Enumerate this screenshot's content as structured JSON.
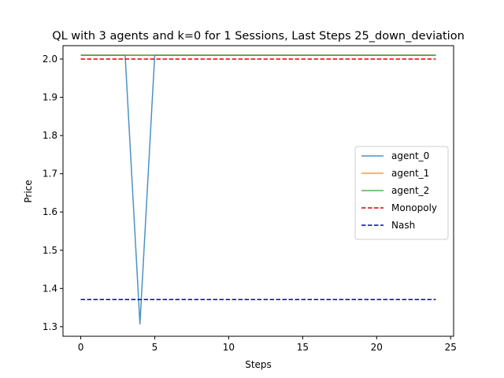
{
  "chart_data": {
    "type": "line",
    "title": "QL with 3 agents and k=0 for 1 Sessions, Last Steps 25_down_deviation",
    "xlabel": "Steps",
    "ylabel": "Price",
    "xlim": [
      -1.2,
      25.2
    ],
    "ylim": [
      1.275,
      2.035
    ],
    "x_ticks": [
      0,
      5,
      10,
      15,
      20,
      25
    ],
    "y_ticks": [
      1.3,
      1.4,
      1.5,
      1.6,
      1.7,
      1.8,
      1.9,
      2.0
    ],
    "grid": false,
    "legend_position": "center-right",
    "series": [
      {
        "name": "agent_0",
        "color": "#1f77b4",
        "dash": "solid",
        "x": [
          0,
          1,
          2,
          3,
          4,
          5,
          6,
          7,
          8,
          9,
          10,
          11,
          12,
          13,
          14,
          15,
          16,
          17,
          18,
          19,
          20,
          21,
          22,
          23,
          24
        ],
        "y": [
          2.01,
          2.01,
          2.01,
          2.01,
          1.307,
          2.01,
          2.01,
          2.01,
          2.01,
          2.01,
          2.01,
          2.01,
          2.01,
          2.01,
          2.01,
          2.01,
          2.01,
          2.01,
          2.01,
          2.01,
          2.01,
          2.01,
          2.01,
          2.01,
          2.01
        ]
      },
      {
        "name": "agent_1",
        "color": "#ff7f0e",
        "dash": "solid",
        "x": [
          0,
          1,
          2,
          3,
          4,
          5,
          6,
          7,
          8,
          9,
          10,
          11,
          12,
          13,
          14,
          15,
          16,
          17,
          18,
          19,
          20,
          21,
          22,
          23,
          24
        ],
        "y": [
          2.01,
          2.01,
          2.01,
          2.01,
          2.01,
          2.01,
          2.01,
          2.01,
          2.01,
          2.01,
          2.01,
          2.01,
          2.01,
          2.01,
          2.01,
          2.01,
          2.01,
          2.01,
          2.01,
          2.01,
          2.01,
          2.01,
          2.01,
          2.01,
          2.01
        ]
      },
      {
        "name": "agent_2",
        "color": "#2ca02c",
        "dash": "solid",
        "x": [
          0,
          1,
          2,
          3,
          4,
          5,
          6,
          7,
          8,
          9,
          10,
          11,
          12,
          13,
          14,
          15,
          16,
          17,
          18,
          19,
          20,
          21,
          22,
          23,
          24
        ],
        "y": [
          2.01,
          2.01,
          2.01,
          2.01,
          2.01,
          2.01,
          2.01,
          2.01,
          2.01,
          2.01,
          2.01,
          2.01,
          2.01,
          2.01,
          2.01,
          2.01,
          2.01,
          2.01,
          2.01,
          2.01,
          2.01,
          2.01,
          2.01,
          2.01,
          2.01
        ]
      },
      {
        "name": "Monopoly",
        "color": "#e00000",
        "dash": "dashed",
        "x": [
          0,
          24
        ],
        "y": [
          2.0,
          2.0
        ]
      },
      {
        "name": "Nash",
        "color": "#0000c0",
        "dash": "dashed",
        "x": [
          0,
          24
        ],
        "y": [
          1.371,
          1.371
        ]
      }
    ]
  }
}
